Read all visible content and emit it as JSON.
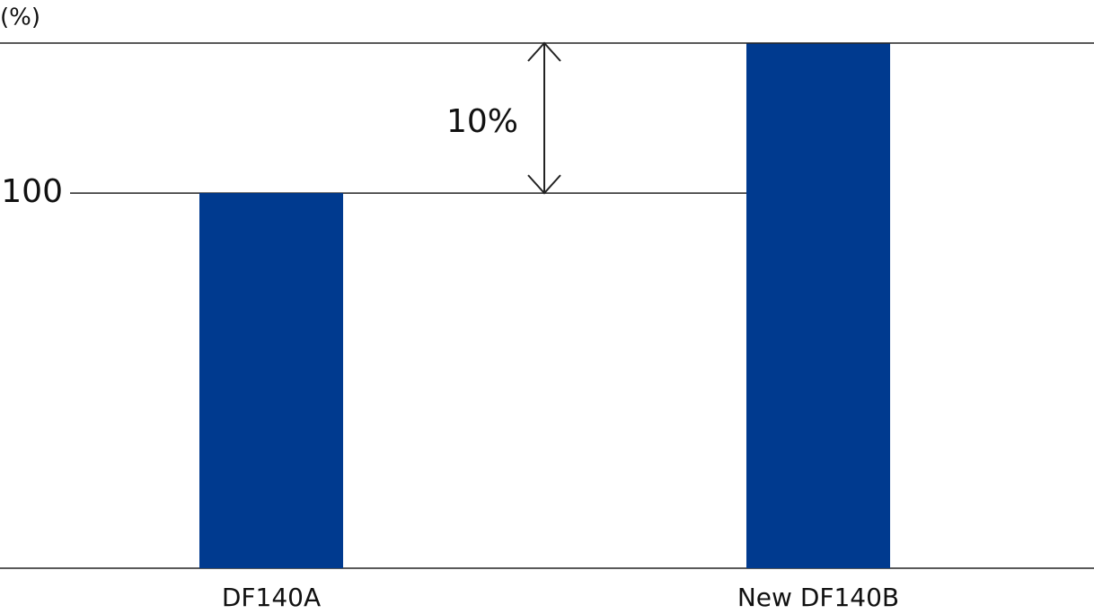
{
  "chart_data": {
    "type": "bar",
    "y_label": "(%)",
    "annotation": "10%",
    "categories": [
      "DF140A",
      "New DF140B"
    ],
    "values": [
      100,
      110
    ],
    "color": "#003a8f",
    "ylim": [
      75,
      110
    ],
    "yticks": [
      100
    ]
  }
}
